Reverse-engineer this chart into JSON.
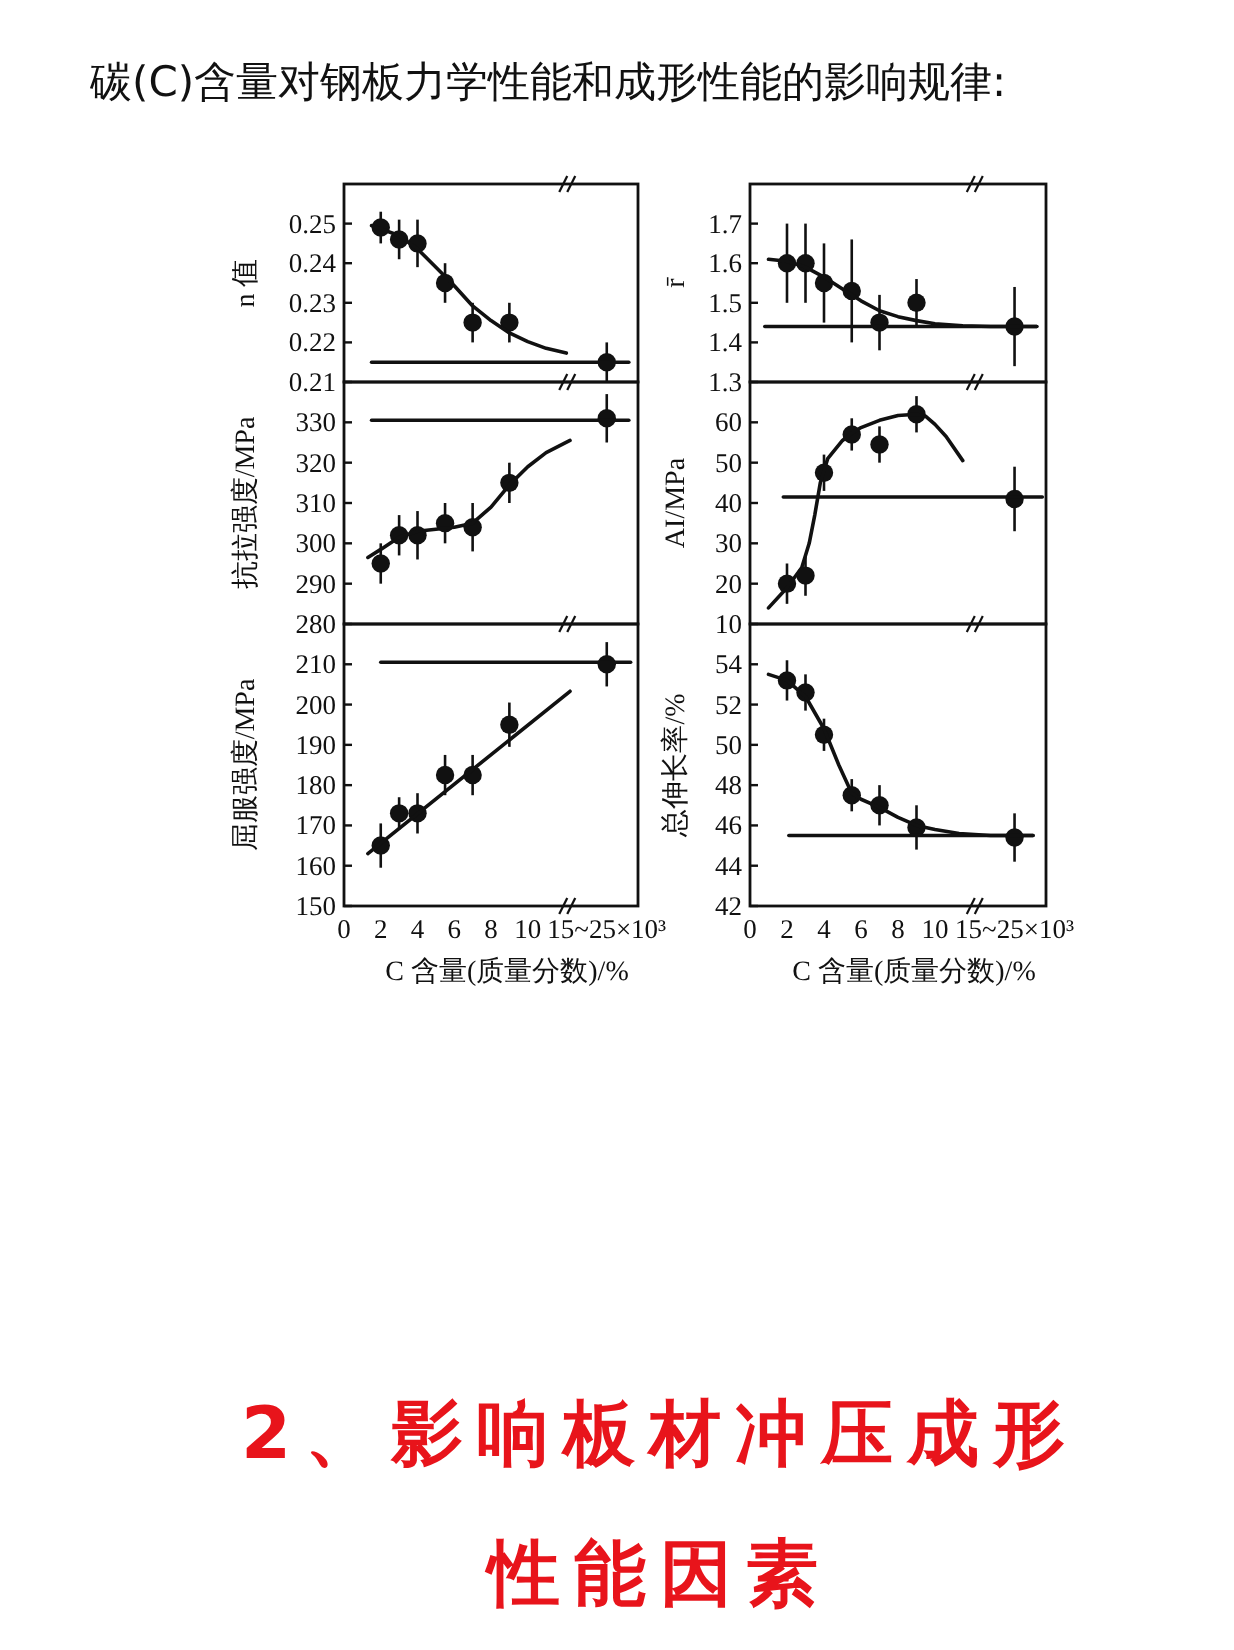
{
  "chart_data": [
    {
      "type": "other",
      "title": "碳(C)含量对钢板力学性能和成形性能的影响规律:"
    },
    {
      "type": "scatter",
      "ylabel": "n 值",
      "xlim": [
        0,
        16
      ],
      "ylim": [
        0.21,
        0.26
      ],
      "yticks": [
        0.21,
        0.22,
        0.23,
        0.24,
        0.25
      ],
      "tick_labels": "y",
      "series": [
        {
          "type": "scatter",
          "marker": "circle",
          "color": "#111111",
          "x": [
            2,
            3,
            4,
            5.5,
            7,
            9,
            14.3
          ],
          "values": [
            0.249,
            0.246,
            0.245,
            0.235,
            0.225,
            0.225,
            0.215
          ],
          "errors": [
            0.004,
            0.005,
            0.006,
            0.005,
            0.005,
            0.005,
            0.005
          ]
        },
        {
          "type": "line",
          "marker": "none",
          "color": "#111111",
          "x": [
            1.5,
            3,
            4,
            5,
            6,
            7,
            8,
            9,
            10,
            11,
            12.1
          ],
          "values": [
            0.2495,
            0.247,
            0.2436,
            0.239,
            0.2343,
            0.2292,
            0.2255,
            0.2224,
            0.2202,
            0.2185,
            0.2173
          ]
        },
        {
          "type": "line",
          "marker": "none",
          "color": "#111111",
          "x": [
            1.5,
            15.5
          ],
          "values": [
            0.215,
            0.215
          ]
        }
      ]
    },
    {
      "type": "scatter",
      "ylabel": "r̄",
      "xlim": [
        0,
        16
      ],
      "ylim": [
        1.3,
        1.8
      ],
      "yticks": [
        1.3,
        1.4,
        1.5,
        1.6,
        1.7
      ],
      "tick_labels": "y",
      "series": [
        {
          "type": "scatter",
          "marker": "circle",
          "color": "#111111",
          "x": [
            2,
            3,
            4,
            5.5,
            7,
            9,
            14.3
          ],
          "values": [
            1.6,
            1.6,
            1.55,
            1.53,
            1.45,
            1.5,
            1.44
          ],
          "errors": [
            0.1,
            0.1,
            0.1,
            0.13,
            0.07,
            0.06,
            0.1
          ]
        },
        {
          "type": "line",
          "marker": "none",
          "color": "#111111",
          "x": [
            1,
            2,
            3,
            4,
            5,
            6,
            7,
            8,
            9,
            10,
            11.5,
            13,
            15.5
          ],
          "values": [
            1.61,
            1.605,
            1.59,
            1.565,
            1.535,
            1.505,
            1.48,
            1.465,
            1.455,
            1.447,
            1.442,
            1.44,
            1.44
          ]
        },
        {
          "type": "line",
          "marker": "none",
          "color": "#111111",
          "x": [
            0.8,
            15.5
          ],
          "values": [
            1.44,
            1.44
          ]
        }
      ]
    },
    {
      "type": "scatter",
      "ylabel": "抗拉强度/MPa",
      "xlim": [
        0,
        16
      ],
      "ylim": [
        280,
        340
      ],
      "yticks": [
        280,
        290,
        300,
        310,
        320,
        330
      ],
      "tick_labels": "y",
      "series": [
        {
          "type": "scatter",
          "marker": "circle",
          "color": "#111111",
          "x": [
            2,
            3,
            4,
            5.5,
            7,
            9,
            14.3
          ],
          "values": [
            295,
            302,
            302,
            305,
            304,
            315,
            331
          ],
          "errors": [
            5,
            5,
            6,
            5,
            6,
            5,
            6
          ]
        },
        {
          "type": "line",
          "marker": "none",
          "color": "#111111",
          "x": [
            1.3,
            2,
            3,
            4,
            5,
            6,
            7,
            8,
            9,
            10,
            11,
            12.3
          ],
          "values": [
            296.5,
            298.5,
            301.5,
            303,
            303.5,
            304,
            305,
            309,
            314.5,
            319,
            322.5,
            325.5
          ]
        },
        {
          "type": "line",
          "marker": "none",
          "color": "#111111",
          "x": [
            1.5,
            15.5
          ],
          "values": [
            330.5,
            330.5
          ]
        }
      ]
    },
    {
      "type": "scatter",
      "ylabel": "AI/MPa",
      "xlim": [
        0,
        16
      ],
      "ylim": [
        10,
        70
      ],
      "yticks": [
        10,
        20,
        30,
        40,
        50,
        60
      ],
      "tick_labels": "y",
      "series": [
        {
          "type": "scatter",
          "marker": "circle",
          "color": "#111111",
          "x": [
            2,
            3,
            4,
            5.5,
            7,
            9,
            14.3
          ],
          "values": [
            20,
            22,
            47.5,
            57,
            54.5,
            62,
            41
          ],
          "errors": [
            5,
            5,
            4.5,
            4,
            4.5,
            4.5,
            8
          ]
        },
        {
          "type": "line",
          "marker": "none",
          "color": "#111111",
          "x": [
            1,
            2,
            2.8,
            3.2,
            3.5,
            3.8,
            4.2,
            5,
            5.5,
            6,
            7,
            8,
            9,
            9.5,
            10,
            10.6,
            11.5
          ],
          "values": [
            14,
            19,
            24,
            30,
            37,
            45,
            51,
            55.5,
            57.3,
            58.7,
            60.5,
            61.7,
            62,
            61.5,
            59.5,
            56.5,
            50.5
          ]
        },
        {
          "type": "line",
          "marker": "none",
          "color": "#111111",
          "x": [
            1.8,
            15.8
          ],
          "values": [
            41.5,
            41.5
          ]
        }
      ]
    },
    {
      "type": "scatter",
      "ylabel": "屈服强度/MPa",
      "xlabel": "C 含量(质量分数)/%",
      "xlim": [
        0,
        16
      ],
      "xticks": [
        0,
        2,
        4,
        6,
        8,
        10,
        {
          "value": 14.3,
          "label": "15~25×10³"
        }
      ],
      "ylim": [
        150,
        220
      ],
      "yticks": [
        150,
        160,
        170,
        180,
        190,
        200,
        210
      ],
      "series": [
        {
          "type": "scatter",
          "marker": "circle",
          "color": "#111111",
          "x": [
            2,
            3,
            4,
            5.5,
            7,
            9,
            14.3
          ],
          "values": [
            165,
            173,
            173,
            182.5,
            182.5,
            195,
            210
          ],
          "errors": [
            5.5,
            4,
            5,
            5,
            5,
            5.5,
            5.5
          ]
        },
        {
          "type": "line",
          "marker": "none",
          "color": "#111111",
          "x": [
            1.3,
            12.3
          ],
          "values": [
            163,
            203.3
          ]
        },
        {
          "type": "line",
          "marker": "none",
          "color": "#111111",
          "x": [
            2,
            15.6
          ],
          "values": [
            210.5,
            210.5
          ]
        }
      ]
    },
    {
      "type": "scatter",
      "ylabel": "总伸长率/%",
      "xlabel": "C 含量(质量分数)/%",
      "xlim": [
        0,
        16
      ],
      "xticks": [
        0,
        2,
        4,
        6,
        8,
        10,
        {
          "value": 14.3,
          "label": "15~25×10³"
        }
      ],
      "ylim": [
        42,
        56
      ],
      "yticks": [
        42,
        44,
        46,
        48,
        50,
        52,
        54
      ],
      "series": [
        {
          "type": "scatter",
          "marker": "circle",
          "color": "#111111",
          "x": [
            2,
            3,
            4,
            5.5,
            7,
            9,
            14.3
          ],
          "values": [
            53.2,
            52.6,
            50.5,
            47.5,
            47,
            45.9,
            45.4
          ],
          "errors": [
            1,
            0.9,
            0.8,
            0.8,
            1,
            1.1,
            1.2
          ]
        },
        {
          "type": "line",
          "marker": "none",
          "color": "#111111",
          "x": [
            1,
            2,
            3,
            4,
            4.8,
            5.5,
            6,
            7,
            8,
            9,
            10,
            11.3,
            13,
            15.3
          ],
          "values": [
            53.5,
            53.2,
            52.4,
            50.8,
            49,
            47.6,
            47.3,
            46.9,
            46.4,
            46,
            45.8,
            45.6,
            45.5,
            45.5
          ]
        },
        {
          "type": "line",
          "marker": "none",
          "color": "#111111",
          "x": [
            2.1,
            15.3
          ],
          "values": [
            45.5,
            45.5
          ]
        }
      ]
    },
    {
      "type": "other",
      "title": "2、影响板材冲压成形性能因素"
    }
  ]
}
